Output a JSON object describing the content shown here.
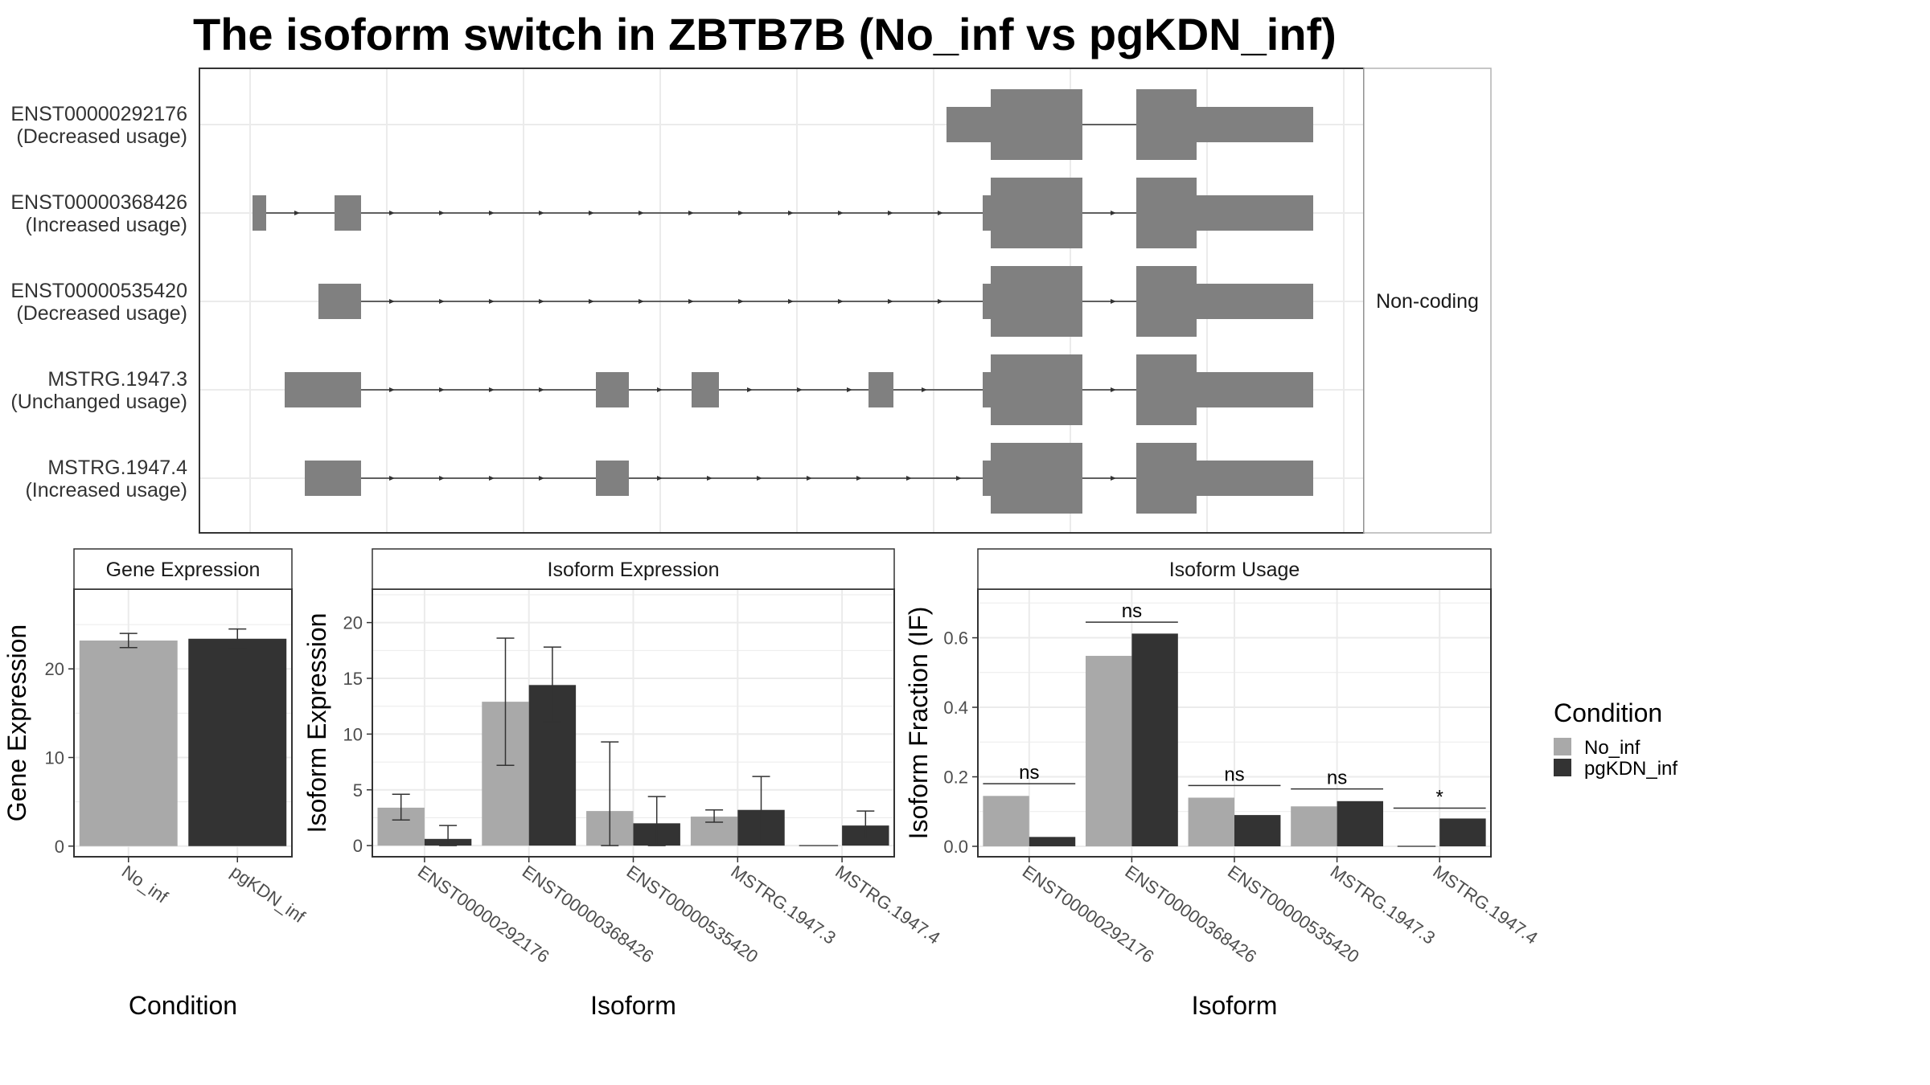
{
  "title": "The isoform switch in ZBTB7B (No_inf vs pgKDN_inf)",
  "colors": {
    "No_inf": "#a9a9a9",
    "pgKDN_inf": "#333333",
    "exon": "#808080",
    "grid": "#ebebeb",
    "panel_border": "#333333",
    "strip_fill": "#ffffff"
  },
  "structure": {
    "facet_label": "Non-coding",
    "isoforms": [
      {
        "id": "ENST00000292176",
        "usage": "(Decreased usage)"
      },
      {
        "id": "ENST00000368426",
        "usage": "(Increased usage)"
      },
      {
        "id": "ENST00000535420",
        "usage": "(Decreased usage)"
      },
      {
        "id": "MSTRG.1947.3",
        "usage": "(Unchanged usage)"
      },
      {
        "id": "MSTRG.1947.4",
        "usage": "(Increased usage)"
      }
    ]
  },
  "chart_data": [
    {
      "type": "bar",
      "strip": "Gene Expression",
      "xlabel": "Condition",
      "ylabel": "Gene Expression",
      "categories": [
        "No_inf",
        "pgKDN_inf"
      ],
      "values": [
        23.2,
        23.4
      ],
      "errors": [
        [
          22.4,
          24.0
        ],
        [
          22.3,
          24.5
        ]
      ],
      "yticks": [
        0,
        10,
        20
      ],
      "ylim": [
        -1.2,
        29
      ]
    },
    {
      "type": "bar",
      "strip": "Isoform Expression",
      "xlabel": "Isoform",
      "ylabel": "Isoform Expression",
      "categories": [
        "ENST00000292176",
        "ENST00000368426",
        "ENST00000535420",
        "MSTRG.1947.3",
        "MSTRG.1947.4"
      ],
      "series": [
        {
          "name": "No_inf",
          "values": [
            3.4,
            12.9,
            3.1,
            2.6,
            0.0
          ],
          "errors": [
            [
              2.3,
              4.6
            ],
            [
              7.2,
              18.6
            ],
            [
              0.0,
              9.3
            ],
            [
              2.1,
              3.2
            ],
            [
              0.0,
              0.0
            ]
          ]
        },
        {
          "name": "pgKDN_inf",
          "values": [
            0.6,
            14.4,
            2.0,
            3.2,
            1.8
          ],
          "errors": [
            [
              0.0,
              1.8
            ],
            [
              11.1,
              17.8
            ],
            [
              0.0,
              4.4
            ],
            [
              0.1,
              6.2
            ],
            [
              0.6,
              3.1
            ]
          ]
        }
      ],
      "yticks": [
        0,
        5,
        10,
        15,
        20
      ],
      "ylim": [
        -1.0,
        23
      ]
    },
    {
      "type": "bar",
      "strip": "Isoform Usage",
      "xlabel": "Isoform",
      "ylabel": "Isoform Fraction (IF)",
      "categories": [
        "ENST00000292176",
        "ENST00000368426",
        "ENST00000535420",
        "MSTRG.1947.3",
        "MSTRG.1947.4"
      ],
      "series": [
        {
          "name": "No_inf",
          "values": [
            0.145,
            0.548,
            0.14,
            0.115,
            0.0
          ]
        },
        {
          "name": "pgKDN_inf",
          "values": [
            0.027,
            0.612,
            0.09,
            0.13,
            0.08
          ]
        }
      ],
      "significance": [
        "ns",
        "ns",
        "ns",
        "ns",
        "*"
      ],
      "significance_y": [
        0.18,
        0.645,
        0.175,
        0.165,
        0.11
      ],
      "yticks": [
        0.0,
        0.2,
        0.4,
        0.6
      ],
      "ylim": [
        -0.03,
        0.74
      ]
    }
  ],
  "legend": {
    "title": "Condition",
    "items": [
      "No_inf",
      "pgKDN_inf"
    ]
  }
}
